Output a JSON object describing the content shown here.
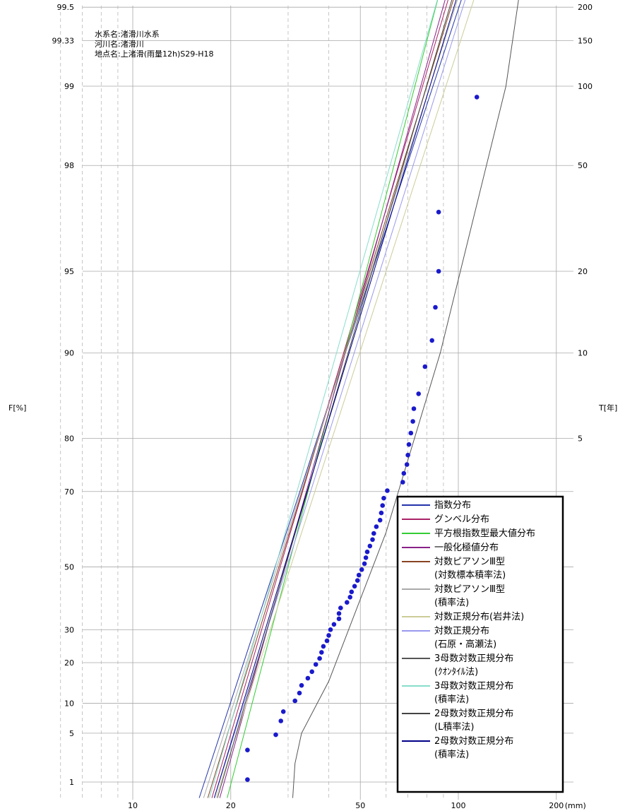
{
  "chart_data": {
    "type": "scatter",
    "info_lines": [
      "水系名:渚滑川水系",
      "河川名:渚滑川",
      "地点名:上渚滑(雨量12h)S29-H18"
    ],
    "ylabel_left": "F[%]",
    "ylabel_right": "T[年]",
    "x_scale": "log",
    "xlim": [
      5.7,
      206
    ],
    "x_unit": "(mm)",
    "x_ticks_major": [
      10,
      20,
      50,
      100,
      200
    ],
    "x_ticks_minor": [
      6,
      7,
      8,
      9,
      30,
      40,
      60,
      70,
      80,
      90
    ],
    "y_scale": "gumbel-probability",
    "ylim_percent": [
      0.5,
      99.85
    ],
    "y_ticks_left": [
      1,
      5,
      10,
      20,
      30,
      50,
      70,
      80,
      90,
      95,
      98,
      99,
      99.33,
      99.5
    ],
    "y_ticks_right": [
      {
        "F": 80,
        "label": "5"
      },
      {
        "F": 90,
        "label": "10"
      },
      {
        "F": 95,
        "label": "20"
      },
      {
        "F": 98,
        "label": "50"
      },
      {
        "F": 99,
        "label": "100"
      },
      {
        "F": 99.33,
        "label": "150"
      },
      {
        "F": 99.5,
        "label": "200"
      }
    ],
    "points": [
      {
        "x": 22.5,
        "F": 1.1
      },
      {
        "x": 22.5,
        "F": 3.1
      },
      {
        "x": 27.5,
        "F": 4.8
      },
      {
        "x": 28.5,
        "F": 6.8
      },
      {
        "x": 29.0,
        "F": 8.4
      },
      {
        "x": 31.5,
        "F": 10.5
      },
      {
        "x": 32.5,
        "F": 12.2
      },
      {
        "x": 33.0,
        "F": 14.0
      },
      {
        "x": 34.5,
        "F": 15.8
      },
      {
        "x": 35.5,
        "F": 17.5
      },
      {
        "x": 36.5,
        "F": 19.5
      },
      {
        "x": 37.5,
        "F": 21.2
      },
      {
        "x": 38.0,
        "F": 23.0
      },
      {
        "x": 38.5,
        "F": 24.8
      },
      {
        "x": 39.5,
        "F": 26.5
      },
      {
        "x": 40.0,
        "F": 28.2
      },
      {
        "x": 40.5,
        "F": 30.0
      },
      {
        "x": 41.5,
        "F": 31.7
      },
      {
        "x": 43.0,
        "F": 33.5
      },
      {
        "x": 43.0,
        "F": 35.2
      },
      {
        "x": 43.5,
        "F": 37.0
      },
      {
        "x": 45.5,
        "F": 38.8
      },
      {
        "x": 46.5,
        "F": 40.5
      },
      {
        "x": 47.0,
        "F": 42.2
      },
      {
        "x": 48.0,
        "F": 44.0
      },
      {
        "x": 49.0,
        "F": 45.8
      },
      {
        "x": 49.5,
        "F": 47.5
      },
      {
        "x": 50.5,
        "F": 49.2
      },
      {
        "x": 51.5,
        "F": 51.0
      },
      {
        "x": 52.0,
        "F": 52.8
      },
      {
        "x": 52.5,
        "F": 54.5
      },
      {
        "x": 53.5,
        "F": 56.2
      },
      {
        "x": 54.5,
        "F": 58.0
      },
      {
        "x": 55.0,
        "F": 59.7
      },
      {
        "x": 56.0,
        "F": 61.5
      },
      {
        "x": 57.5,
        "F": 63.2
      },
      {
        "x": 58.0,
        "F": 65.0
      },
      {
        "x": 58.5,
        "F": 66.8
      },
      {
        "x": 59.0,
        "F": 68.5
      },
      {
        "x": 60.5,
        "F": 70.2
      },
      {
        "x": 67.5,
        "F": 72.0
      },
      {
        "x": 68.0,
        "F": 73.8
      },
      {
        "x": 69.5,
        "F": 75.5
      },
      {
        "x": 70.0,
        "F": 77.2
      },
      {
        "x": 70.5,
        "F": 79.0
      },
      {
        "x": 71.5,
        "F": 80.8
      },
      {
        "x": 72.5,
        "F": 82.5
      },
      {
        "x": 73.0,
        "F": 84.2
      },
      {
        "x": 75.5,
        "F": 86.0
      },
      {
        "x": 79.0,
        "F": 88.8
      },
      {
        "x": 83.0,
        "F": 91.0
      },
      {
        "x": 85.0,
        "F": 93.2
      },
      {
        "x": 87.0,
        "F": 95.0
      },
      {
        "x": 87.0,
        "F": 97.0
      },
      {
        "x": 114.0,
        "F": 98.9
      }
    ],
    "series": [
      {
        "name": "指数分布",
        "color": "#2233aa",
        "x": [
          16.0,
          138.0
        ],
        "F": [
          0.5,
          99.85
        ]
      },
      {
        "name": "グンベル分布",
        "color": "#aa2266",
        "x": [
          17.5,
          122.0
        ],
        "F": [
          0.5,
          99.85
        ]
      },
      {
        "name": "平方根指数型最大値分布",
        "color": "#33cc33",
        "x": [
          19.5,
          110.0
        ],
        "F": [
          0.5,
          99.85
        ]
      },
      {
        "name": "一般化極値分布",
        "color": "#882288",
        "x": [
          18.5,
          118.0
        ],
        "F": [
          0.5,
          99.85
        ]
      },
      {
        "name": "対数ピアソンⅢ型\n(対数標本積率法)",
        "color": "#884422",
        "x": [
          17.0,
          128.0
        ],
        "F": [
          0.5,
          99.85
        ]
      },
      {
        "name": "対数ピアソンⅢ型\n(積率法)",
        "color": "#aaaaaa",
        "x": [
          16.5,
          133.0
        ],
        "F": [
          0.5,
          99.85
        ]
      },
      {
        "name": "対数正規分布(岩井法)",
        "color": "#cccc99",
        "x": [
          18.0,
          150.0
        ],
        "F": [
          0.5,
          99.85
        ]
      },
      {
        "name": "対数正規分布\n(石原・高瀬法)",
        "color": "#9999ee",
        "x": [
          17.8,
          140.0
        ],
        "F": [
          0.5,
          99.85
        ]
      },
      {
        "name": "3母数対数正規分布\n(ｸｵﾝﾀｲﾙ法)",
        "color": "#555555",
        "x": [
          31.0,
          31.5,
          33.0,
          40.0,
          60.0,
          88.0,
          140.0,
          175.0
        ],
        "F": [
          0.5,
          2.0,
          5.0,
          15.0,
          60.0,
          90.0,
          99.0,
          99.85
        ]
      },
      {
        "name": "3母数対数正規分布\n(積率法)",
        "color": "#88ddcc",
        "x": [
          17.2,
          112.0
        ],
        "F": [
          0.5,
          99.85
        ]
      },
      {
        "name": "2母数対数正規分布\n(L積率法)",
        "color": "#444444",
        "x": [
          18.2,
          125.0
        ],
        "F": [
          0.5,
          99.85
        ]
      },
      {
        "name": "2母数対数正規分布\n(積率法)",
        "color": "#000088",
        "x": [
          17.8,
          130.0
        ],
        "F": [
          0.5,
          99.85
        ]
      }
    ],
    "point_color": "#1a1acc",
    "legend_position": "bottom-right",
    "grid": true
  }
}
